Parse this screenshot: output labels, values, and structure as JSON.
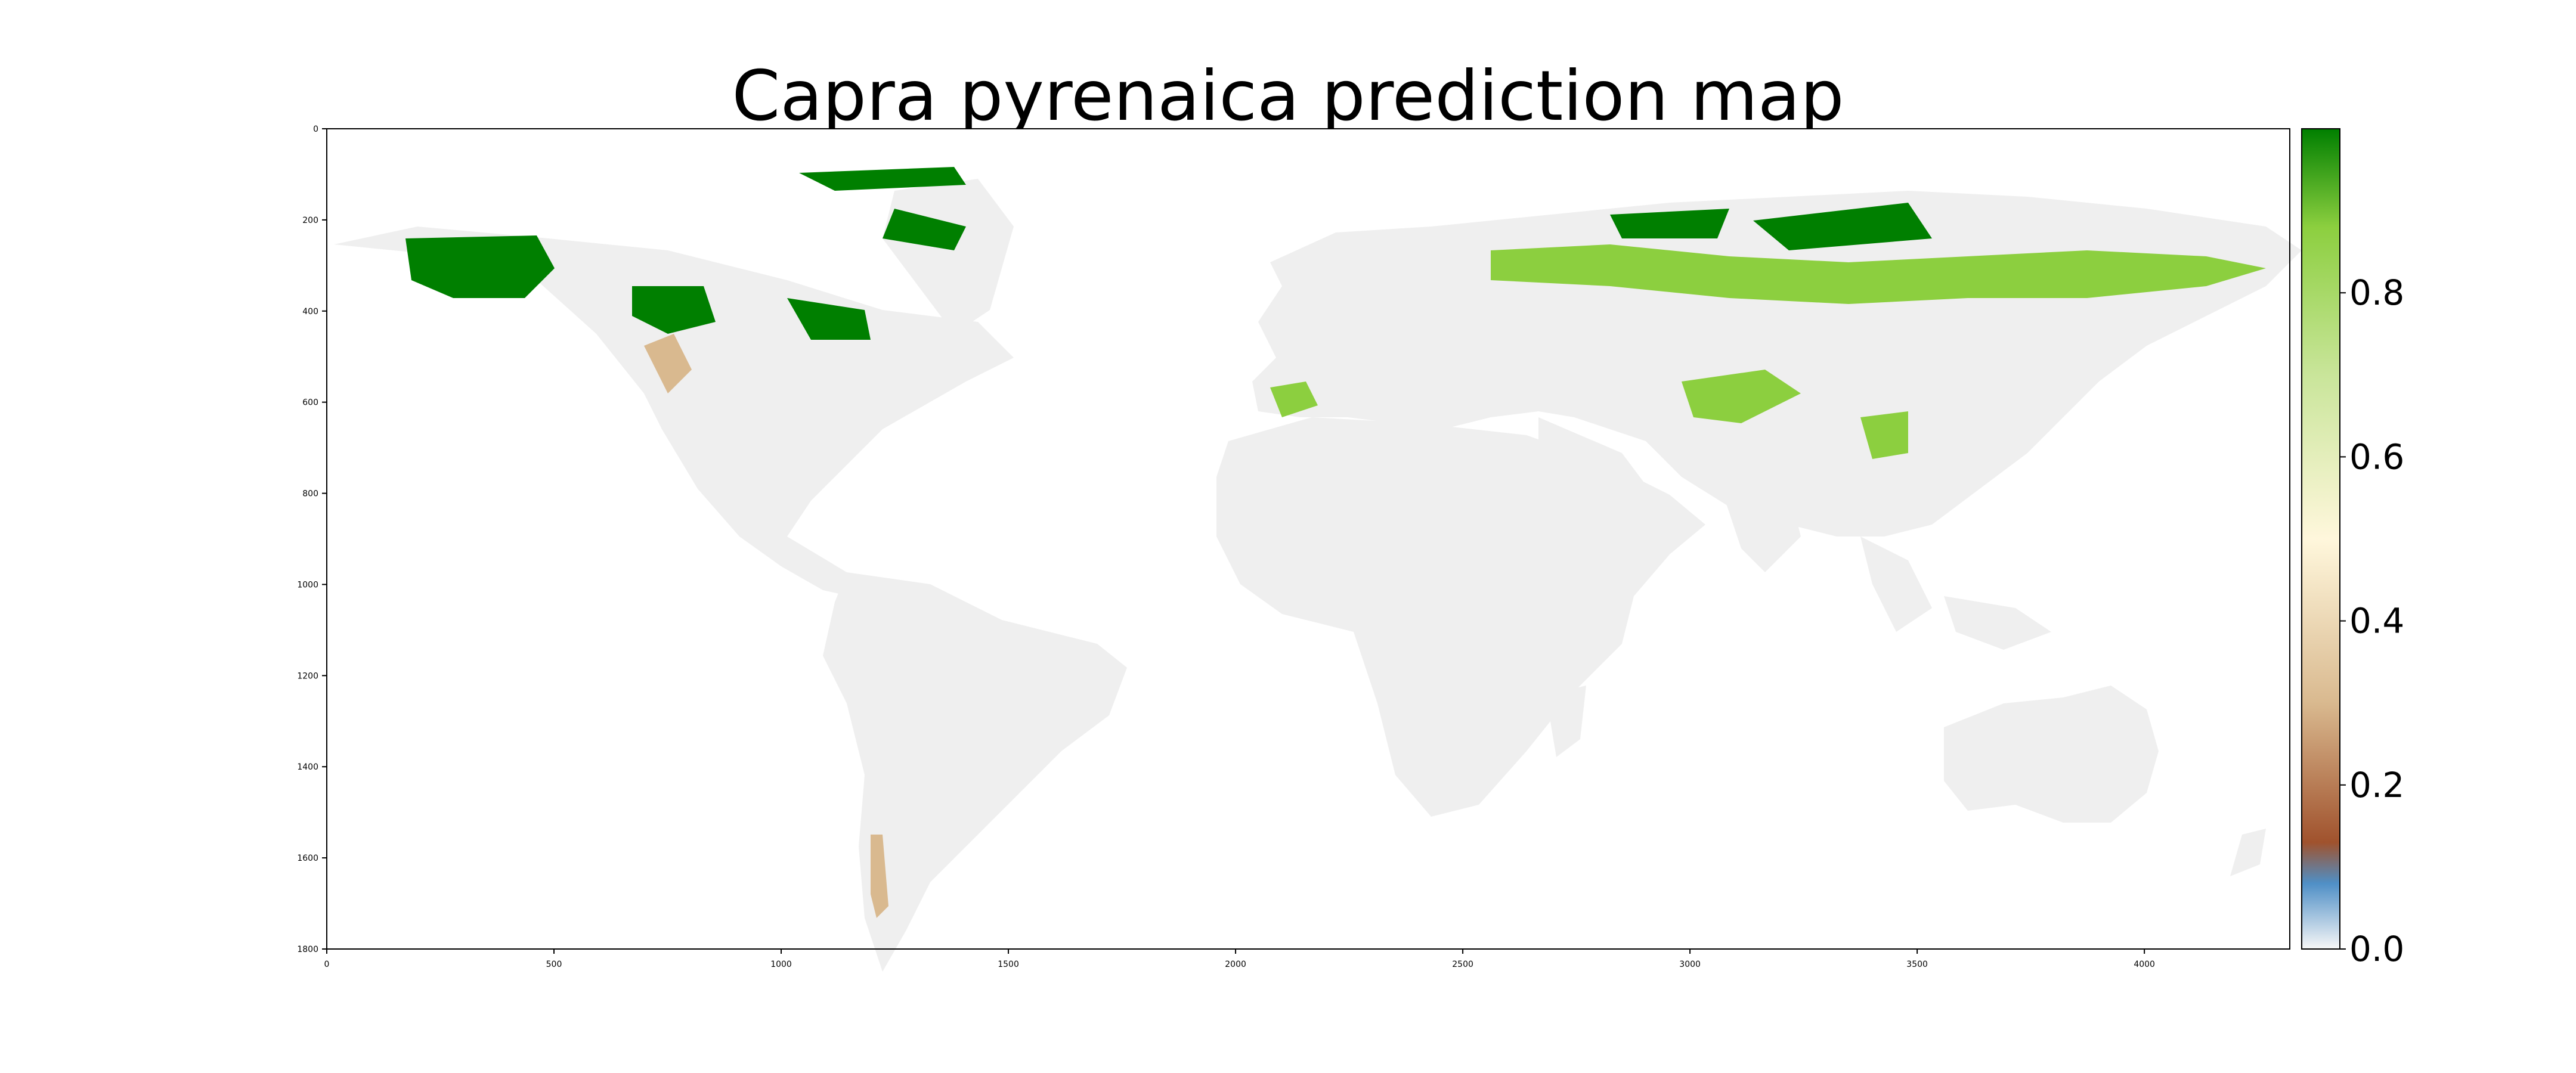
{
  "title": "Capra pyrenaica prediction map",
  "map": {
    "x_ticks": [
      "0",
      "500",
      "1000",
      "1500",
      "2000",
      "2500",
      "3000",
      "3500",
      "4000"
    ],
    "y_ticks": [
      "0",
      "200",
      "400",
      "600",
      "800",
      "1000",
      "1200",
      "1400",
      "1600",
      "1800"
    ],
    "x_range": [
      0,
      4320
    ],
    "y_range": [
      0,
      1800
    ],
    "background_land_color": "#efefef",
    "ocean_color": "#ffffff"
  },
  "colorbar": {
    "tick_labels": [
      "0.0",
      "0.2",
      "0.4",
      "0.6",
      "0.8"
    ],
    "range": [
      0,
      1
    ],
    "colors": [
      "#f7f7f7",
      "#4f8fc6",
      "#a0522d",
      "#d9b98f",
      "#fff7dc",
      "#c9e59a",
      "#8ccf3f",
      "#007f00"
    ]
  }
}
